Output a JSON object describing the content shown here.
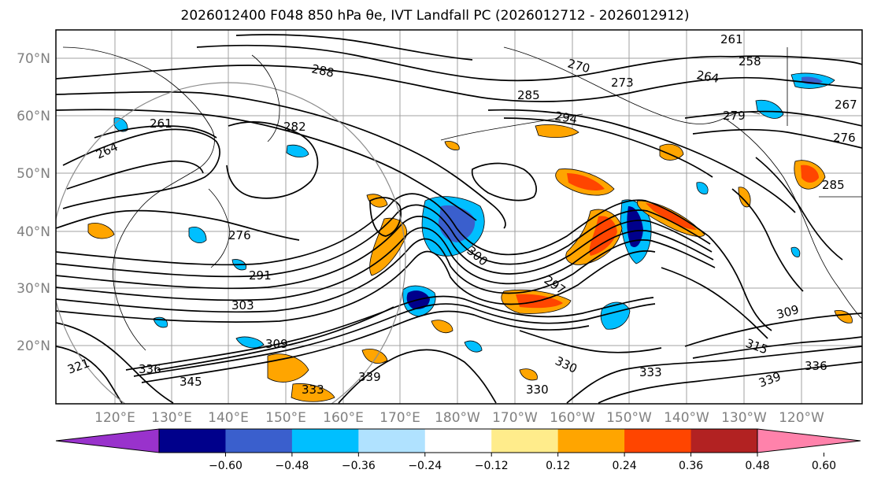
{
  "title": "2026012400 F048 850 hPa θe, IVT Landfall PC (2026012712 - 2026012912)",
  "map": {
    "lat_labels": [
      "70°N",
      "60°N",
      "50°N",
      "40°N",
      "30°N",
      "20°N"
    ],
    "lon_labels": [
      "120°E",
      "130°E",
      "140°E",
      "150°E",
      "160°E",
      "170°E",
      "180°W",
      "170°W",
      "160°W",
      "150°W",
      "140°W",
      "130°W",
      "120°W"
    ],
    "contour_labels": [
      "261",
      "258",
      "270",
      "273",
      "264",
      "267",
      "288",
      "285",
      "294",
      "279",
      "276",
      "282",
      "261",
      "264",
      "276",
      "291",
      "303",
      "309",
      "321",
      "336",
      "345",
      "333",
      "339",
      "300",
      "297",
      "309",
      "315",
      "336",
      "339",
      "330",
      "333",
      "330",
      "285"
    ],
    "fill_colors": {
      "neg_060": "#9932cc",
      "neg_048": "#00008b",
      "neg_036": "#3a5fcd",
      "neg_024": "#00bfff",
      "neg_012": "#b0e2ff",
      "neutral": "#ffffff",
      "pos_012": "#ffec8b",
      "pos_024": "#ffa500",
      "pos_036": "#ff4500",
      "pos_048": "#b22222",
      "pos_060": "#ff82ab"
    }
  },
  "colorbar": {
    "ticks": [
      "−0.60",
      "−0.48",
      "−0.36",
      "−0.24",
      "−0.12",
      "0.12",
      "0.24",
      "0.36",
      "0.48",
      "0.60"
    ],
    "segment_colors": [
      "#9932cc",
      "#00008b",
      "#3a5fcd",
      "#00bfff",
      "#b0e2ff",
      "#ffffff",
      "#ffec8b",
      "#ffa500",
      "#ff4500",
      "#b22222",
      "#ff82ab"
    ]
  }
}
